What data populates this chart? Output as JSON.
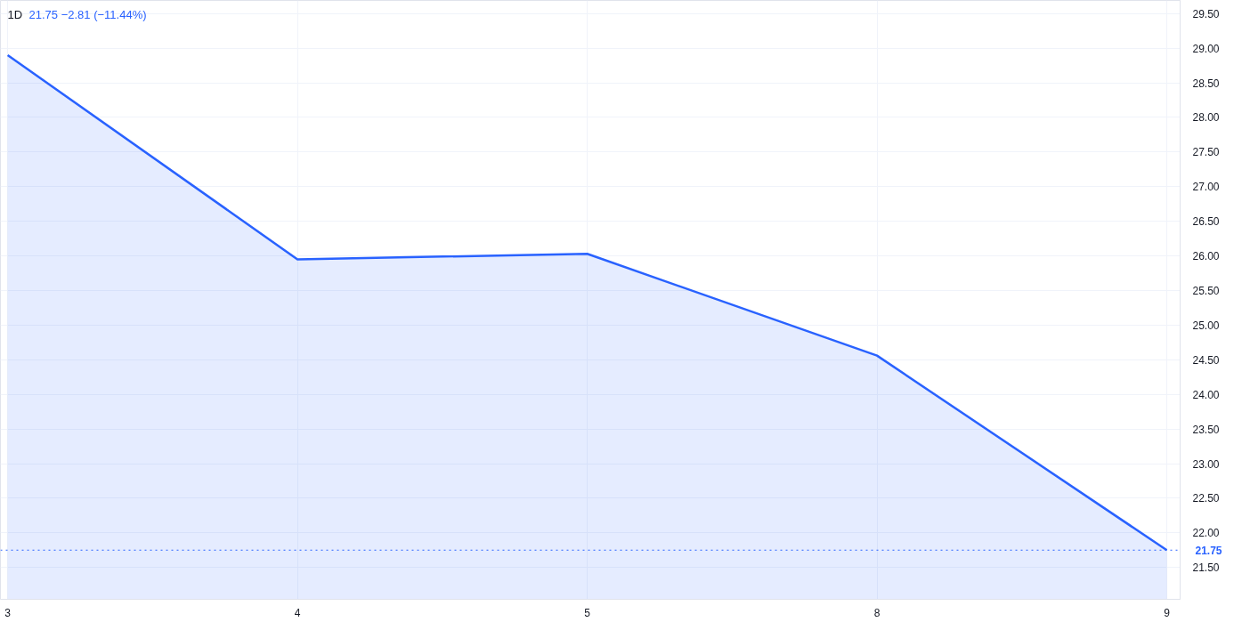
{
  "chart_data": {
    "type": "area",
    "title": "1D",
    "subtitle": "21.75 −2.81 (−11.44%)",
    "categories": [
      "3",
      "4",
      "5",
      "8",
      "9"
    ],
    "series": [
      {
        "color": "#2962ff",
        "values": [
          28.9,
          25.95,
          26.03,
          24.56,
          21.75
        ]
      }
    ],
    "ylim": [
      21.04,
      29.69
    ],
    "yticks": [
      {
        "value": 21.5,
        "label": "21.50"
      },
      {
        "value": 22,
        "label": "22.00"
      },
      {
        "value": 22.5,
        "label": "22.50"
      },
      {
        "value": 23,
        "label": "23.00"
      },
      {
        "value": 23.5,
        "label": "23.50"
      },
      {
        "value": 24,
        "label": "24.00"
      },
      {
        "value": 24.5,
        "label": "24.50"
      },
      {
        "value": 25,
        "label": "25.00"
      },
      {
        "value": 25.5,
        "label": "25.50"
      },
      {
        "value": 26,
        "label": "26.00"
      },
      {
        "value": 26.5,
        "label": "26.50"
      },
      {
        "value": 27,
        "label": "27.00"
      },
      {
        "value": 27.5,
        "label": "27.50"
      },
      {
        "value": 28,
        "label": "28.00"
      },
      {
        "value": 28.5,
        "label": "28.50"
      },
      {
        "value": 29,
        "label": "29.00"
      },
      {
        "value": 29.5,
        "label": "29.50"
      }
    ],
    "ref_lines": [
      {
        "axis": "y",
        "value": 21.75,
        "label": "21.75",
        "color": "#2962ff",
        "line_style": "dotted"
      }
    ],
    "grid": true,
    "line_style": "solid"
  }
}
